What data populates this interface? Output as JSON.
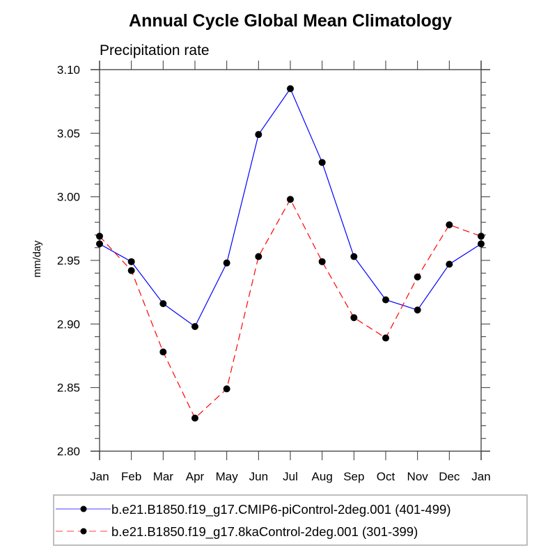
{
  "chart_data": {
    "type": "line",
    "title": "Annual Cycle Global Mean Climatology",
    "subtitle": "Precipitation rate",
    "xlabel": "",
    "ylabel": "mm/day",
    "categories": [
      "Jan",
      "Feb",
      "Mar",
      "Apr",
      "May",
      "Jun",
      "Jul",
      "Aug",
      "Sep",
      "Oct",
      "Nov",
      "Dec",
      "Jan"
    ],
    "ylim": [
      2.8,
      3.1
    ],
    "yticks": [
      2.8,
      2.85,
      2.9,
      2.95,
      3.0,
      3.05,
      3.1
    ],
    "ytick_labels": [
      "2.80",
      "2.85",
      "2.90",
      "2.95",
      "3.00",
      "3.05",
      "3.10"
    ],
    "y_minor_step": 0.01,
    "grid": false,
    "legend_position": "bottom",
    "series": [
      {
        "name": "b.e21.B1850.f19_g17.CMIP6-piControl-2deg.001 (401-499)",
        "color": "#0000ff",
        "dash": "solid",
        "marker": "filled-circle",
        "values": [
          2.963,
          2.949,
          2.916,
          2.898,
          2.948,
          3.049,
          3.085,
          3.027,
          2.953,
          2.919,
          2.911,
          2.947,
          2.963
        ]
      },
      {
        "name": "b.e21.B1850.f19_g17.8kaControl-2deg.001 (301-399)",
        "color": "#ff0000",
        "dash": "dashed",
        "marker": "filled-circle",
        "values": [
          2.969,
          2.942,
          2.878,
          2.826,
          2.849,
          2.953,
          2.998,
          2.949,
          2.905,
          2.889,
          2.937,
          2.978,
          2.969
        ]
      }
    ]
  }
}
